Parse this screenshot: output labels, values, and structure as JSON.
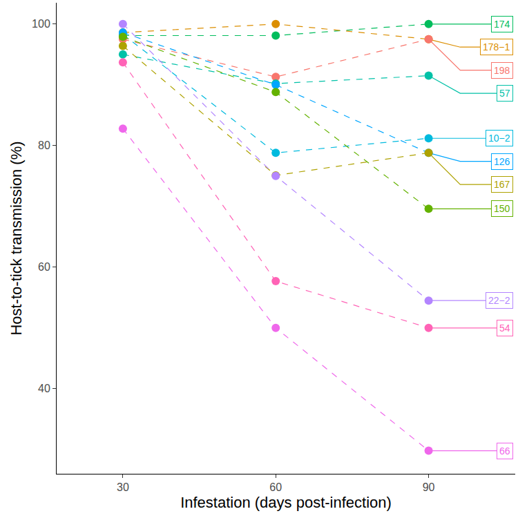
{
  "chart_data": {
    "type": "line",
    "x_label": "Infestation (days post-infection)",
    "y_label": "Host-to-tick transmission (%)",
    "x": [
      30,
      60,
      90
    ],
    "xlim": [
      17,
      107
    ],
    "ylim": [
      26,
      103.5
    ],
    "xticks": [
      30,
      60,
      90
    ],
    "yticks": [
      40,
      60,
      80,
      100
    ],
    "grid": false,
    "marker": "circle",
    "line_style": "dashed",
    "series": [
      {
        "name": "174",
        "color": "#00BD5C",
        "values": [
          98.1,
          98.1,
          100
        ]
      },
      {
        "name": "178−1",
        "color": "#DB8E00",
        "values": [
          98.6,
          100,
          97.5
        ]
      },
      {
        "name": "198",
        "color": "#F8766D",
        "values": [
          97.5,
          91.3,
          97.5
        ]
      },
      {
        "name": "57",
        "color": "#00C1A7",
        "values": [
          95.0,
          90.2,
          91.5
        ]
      },
      {
        "name": "10−2",
        "color": "#00BADE",
        "values": [
          98.3,
          78.8,
          81.2
        ]
      },
      {
        "name": "126",
        "color": "#00A6FF",
        "values": [
          98.6,
          90.0,
          78.8
        ]
      },
      {
        "name": "167",
        "color": "#AEA200",
        "values": [
          96.4,
          75.1,
          78.8
        ]
      },
      {
        "name": "150",
        "color": "#64B200",
        "values": [
          97.9,
          88.8,
          69.6
        ]
      },
      {
        "name": "22−2",
        "color": "#B385FF",
        "values": [
          100,
          75.0,
          54.5
        ]
      },
      {
        "name": "54",
        "color": "#FF63B6",
        "values": [
          93.7,
          57.7,
          50.0
        ]
      },
      {
        "name": "66",
        "color": "#EF67EB",
        "values": [
          82.8,
          50.0,
          29.8
        ]
      }
    ]
  }
}
